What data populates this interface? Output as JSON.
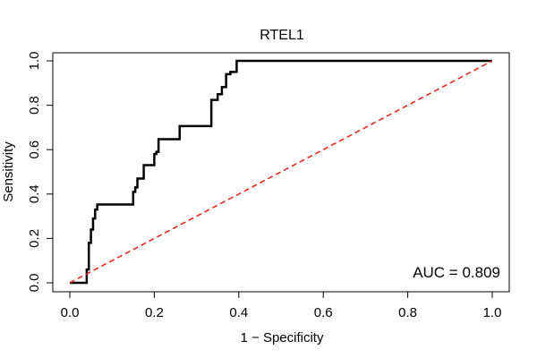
{
  "chart_data": {
    "type": "line",
    "title": "RTEL1",
    "xlabel": "1 − Specificity",
    "ylabel": "Sensitivity",
    "xlim": [
      0,
      1
    ],
    "ylim": [
      0,
      1
    ],
    "x_ticks": [
      "0.0",
      "0.2",
      "0.4",
      "0.6",
      "0.8",
      "1.0"
    ],
    "y_ticks": [
      "0.0",
      "0.2",
      "0.4",
      "0.6",
      "0.8",
      "1.0"
    ],
    "grid": false,
    "legend": "none",
    "annotation": "AUC = 0.809",
    "series": [
      {
        "color": "#000000",
        "x": [
          0.0,
          0.04,
          0.04,
          0.045,
          0.045,
          0.05,
          0.05,
          0.055,
          0.055,
          0.06,
          0.06,
          0.065,
          0.065,
          0.15,
          0.15,
          0.155,
          0.155,
          0.16,
          0.16,
          0.175,
          0.175,
          0.2,
          0.2,
          0.205,
          0.205,
          0.21,
          0.21,
          0.26,
          0.26,
          0.335,
          0.335,
          0.35,
          0.35,
          0.36,
          0.36,
          0.37,
          0.37,
          0.38,
          0.38,
          0.395,
          0.395,
          1.0
        ],
        "y": [
          0.0,
          0.0,
          0.06,
          0.06,
          0.18,
          0.18,
          0.24,
          0.24,
          0.29,
          0.29,
          0.33,
          0.33,
          0.353,
          0.353,
          0.41,
          0.41,
          0.43,
          0.43,
          0.47,
          0.47,
          0.53,
          0.53,
          0.58,
          0.58,
          0.59,
          0.59,
          0.647,
          0.647,
          0.706,
          0.706,
          0.824,
          0.824,
          0.85,
          0.85,
          0.882,
          0.882,
          0.94,
          0.94,
          0.95,
          0.95,
          1.0,
          1.0
        ]
      },
      {
        "color": "#e8271e",
        "style": "dashed",
        "x": [
          0,
          1
        ],
        "y": [
          0,
          1
        ]
      }
    ]
  }
}
